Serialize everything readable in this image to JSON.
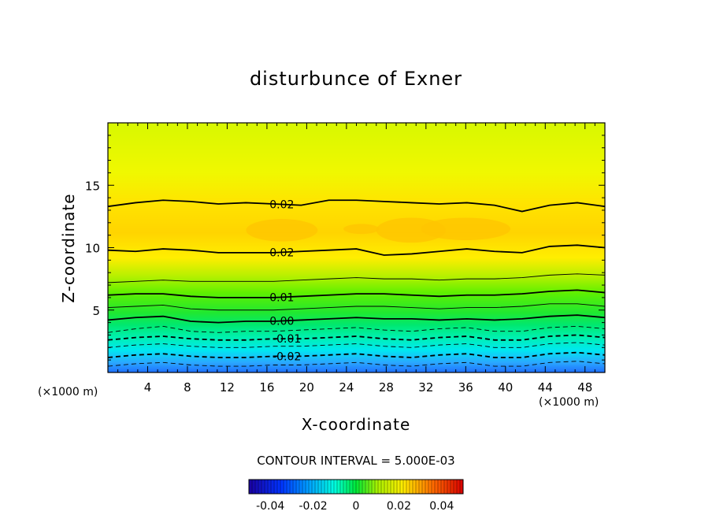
{
  "chart_data": {
    "type": "contour",
    "title": "disturbunce of Exner",
    "xlabel": "X-coordinate",
    "ylabel": "Z-coordinate",
    "x_unit": "(×1000 m)",
    "y_unit": "(×1000 m)",
    "xlim": [
      0,
      50
    ],
    "ylim": [
      0,
      20
    ],
    "x_ticks": [
      4,
      8,
      12,
      16,
      20,
      24,
      28,
      32,
      36,
      40,
      44,
      48
    ],
    "y_ticks": [
      5,
      10,
      15
    ],
    "contour_interval_label": "CONTOUR INTERVAL = 5.000E-03",
    "contour_interval": 0.005,
    "contours": [
      {
        "level": 0.02,
        "label": "0.02",
        "z": [
          13.3,
          13.6,
          13.8,
          13.7,
          13.5,
          13.6,
          13.5,
          13.4,
          13.8,
          13.8,
          13.7,
          13.6,
          13.5,
          13.6,
          13.4,
          12.9,
          13.4,
          13.6,
          13.3
        ]
      },
      {
        "level": 0.02,
        "label": "0.02",
        "z": [
          9.8,
          9.7,
          9.9,
          9.8,
          9.6,
          9.6,
          9.6,
          9.7,
          9.8,
          9.9,
          9.4,
          9.5,
          9.7,
          9.9,
          9.7,
          9.6,
          10.1,
          10.2,
          10.0
        ]
      },
      {
        "level": 0.015,
        "label": "",
        "z": [
          7.2,
          7.3,
          7.4,
          7.3,
          7.3,
          7.3,
          7.3,
          7.4,
          7.5,
          7.6,
          7.5,
          7.5,
          7.4,
          7.5,
          7.5,
          7.6,
          7.8,
          7.9,
          7.8
        ]
      },
      {
        "level": 0.01,
        "label": "0.01",
        "z": [
          6.2,
          6.3,
          6.3,
          6.1,
          6.0,
          6.0,
          6.0,
          6.1,
          6.2,
          6.3,
          6.3,
          6.2,
          6.1,
          6.2,
          6.2,
          6.3,
          6.5,
          6.6,
          6.4
        ]
      },
      {
        "level": 0.005,
        "label": "",
        "z": [
          5.2,
          5.3,
          5.4,
          5.1,
          5.0,
          5.0,
          5.0,
          5.1,
          5.2,
          5.3,
          5.3,
          5.2,
          5.1,
          5.2,
          5.2,
          5.3,
          5.5,
          5.5,
          5.3
        ]
      },
      {
        "level": 0.0,
        "label": "0.00",
        "z": [
          4.2,
          4.4,
          4.5,
          4.1,
          4.0,
          4.1,
          4.1,
          4.2,
          4.3,
          4.4,
          4.3,
          4.3,
          4.2,
          4.3,
          4.2,
          4.3,
          4.5,
          4.6,
          4.4
        ]
      },
      {
        "level": -0.005,
        "label": "",
        "z": [
          3.2,
          3.5,
          3.7,
          3.3,
          3.2,
          3.3,
          3.3,
          3.4,
          3.5,
          3.6,
          3.4,
          3.3,
          3.5,
          3.6,
          3.3,
          3.3,
          3.6,
          3.7,
          3.5
        ]
      },
      {
        "level": -0.01,
        "label": "-0.01",
        "z": [
          2.6,
          2.8,
          2.9,
          2.7,
          2.6,
          2.6,
          2.7,
          2.7,
          2.8,
          2.9,
          2.7,
          2.6,
          2.8,
          2.9,
          2.6,
          2.6,
          2.9,
          3.0,
          2.8
        ]
      },
      {
        "level": -0.015,
        "label": "",
        "z": [
          2.0,
          2.2,
          2.3,
          2.1,
          2.0,
          2.0,
          2.1,
          2.1,
          2.2,
          2.3,
          2.1,
          2.0,
          2.2,
          2.3,
          2.0,
          2.0,
          2.3,
          2.4,
          2.2
        ]
      },
      {
        "level": -0.02,
        "label": "-0.02",
        "z": [
          1.2,
          1.4,
          1.5,
          1.3,
          1.2,
          1.2,
          1.3,
          1.3,
          1.4,
          1.5,
          1.3,
          1.2,
          1.4,
          1.5,
          1.2,
          1.2,
          1.5,
          1.6,
          1.4
        ]
      },
      {
        "level": -0.025,
        "label": "",
        "z": [
          0.5,
          0.7,
          0.8,
          0.6,
          0.5,
          0.5,
          0.6,
          0.6,
          0.7,
          0.8,
          0.6,
          0.5,
          0.7,
          0.8,
          0.5,
          0.5,
          0.8,
          0.9,
          0.7
        ]
      }
    ],
    "colorbar": {
      "range": [
        -0.05,
        0.05
      ],
      "tick_values": [
        -0.04,
        -0.02,
        0,
        0.02,
        0.04
      ],
      "tick_labels": [
        "-0.04",
        "-0.02",
        "0",
        "0.02",
        "0.04"
      ]
    }
  },
  "colors": {
    "ramp": [
      "#1a00a0",
      "#0033ff",
      "#00a0ff",
      "#00ffe0",
      "#00e838",
      "#a8f000",
      "#ffec00",
      "#ff6a00",
      "#d80000"
    ]
  }
}
